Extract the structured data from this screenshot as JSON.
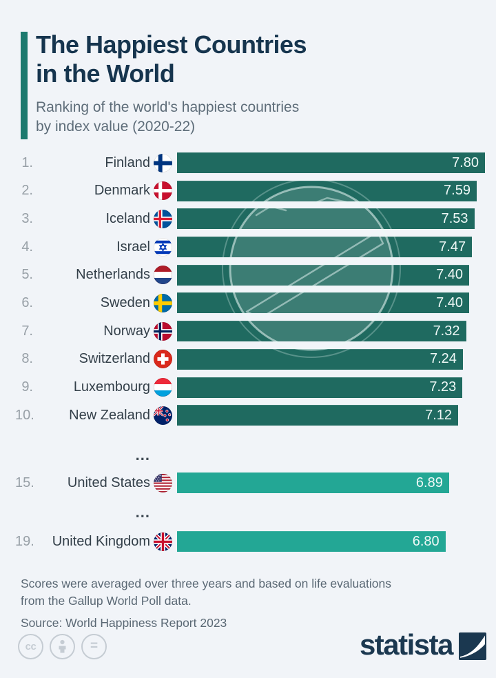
{
  "colors": {
    "background": "#f1f4f8",
    "accent_bar": "#1c7a6e",
    "bar_top10": "#1f6a60",
    "bar_other": "#23a795",
    "title_text": "#16354e",
    "subtitle_text": "#5e6d79",
    "rank_text": "#98a0a7",
    "country_text": "#333f49",
    "bar_value_text": "#eef8f6",
    "footnote_text": "#5a6874",
    "logo_navy": "#1b3850"
  },
  "header": {
    "title_line1": "The Happiest Countries",
    "title_line2": "in the World",
    "subtitle_line1": "Ranking of the world's happiest countries",
    "subtitle_line2": "by index value (2020-22)"
  },
  "chart_data": {
    "type": "bar",
    "orientation": "horizontal",
    "title": "The Happiest Countries in the World",
    "subtitle": "Ranking of the world's happiest countries by index value (2020-22)",
    "value_axis_max": 7.8,
    "legend": "none",
    "grid": false,
    "entries": [
      {
        "kind": "row",
        "rank": "1.",
        "country": "Finland",
        "flag": "fi",
        "value": 7.8,
        "value_label": "7.80",
        "tier": "top10"
      },
      {
        "kind": "row",
        "rank": "2.",
        "country": "Denmark",
        "flag": "dk",
        "value": 7.59,
        "value_label": "7.59",
        "tier": "top10"
      },
      {
        "kind": "row",
        "rank": "3.",
        "country": "Iceland",
        "flag": "is",
        "value": 7.53,
        "value_label": "7.53",
        "tier": "top10"
      },
      {
        "kind": "row",
        "rank": "4.",
        "country": "Israel",
        "flag": "il",
        "value": 7.47,
        "value_label": "7.47",
        "tier": "top10"
      },
      {
        "kind": "row",
        "rank": "5.",
        "country": "Netherlands",
        "flag": "nl",
        "value": 7.4,
        "value_label": "7.40",
        "tier": "top10"
      },
      {
        "kind": "row",
        "rank": "6.",
        "country": "Sweden",
        "flag": "se",
        "value": 7.4,
        "value_label": "7.40",
        "tier": "top10"
      },
      {
        "kind": "row",
        "rank": "7.",
        "country": "Norway",
        "flag": "no",
        "value": 7.32,
        "value_label": "7.32",
        "tier": "top10"
      },
      {
        "kind": "row",
        "rank": "8.",
        "country": "Switzerland",
        "flag": "ch",
        "value": 7.24,
        "value_label": "7.24",
        "tier": "top10"
      },
      {
        "kind": "row",
        "rank": "9.",
        "country": "Luxembourg",
        "flag": "lu",
        "value": 7.23,
        "value_label": "7.23",
        "tier": "top10"
      },
      {
        "kind": "row",
        "rank": "10.",
        "country": "New Zealand",
        "flag": "nz",
        "value": 7.12,
        "value_label": "7.12",
        "tier": "top10"
      },
      {
        "kind": "ellipsis",
        "label": "...",
        "gap": 1
      },
      {
        "kind": "row",
        "rank": "15.",
        "country": "United States",
        "flag": "us",
        "value": 6.89,
        "value_label": "6.89",
        "tier": "other"
      },
      {
        "kind": "ellipsis",
        "label": "...",
        "gap": 2
      },
      {
        "kind": "row",
        "rank": "19.",
        "country": "United Kingdom",
        "flag": "gb",
        "value": 6.8,
        "value_label": "6.80",
        "tier": "other"
      }
    ]
  },
  "footer": {
    "note_line1": "Scores were averaged over three years and based on life evaluations",
    "note_line2": "from the Gallup World Poll data.",
    "source": "Source: World Happiness Report 2023"
  },
  "branding": {
    "logo_text": "statista",
    "license": {
      "cc": "cc",
      "equals": "="
    }
  }
}
